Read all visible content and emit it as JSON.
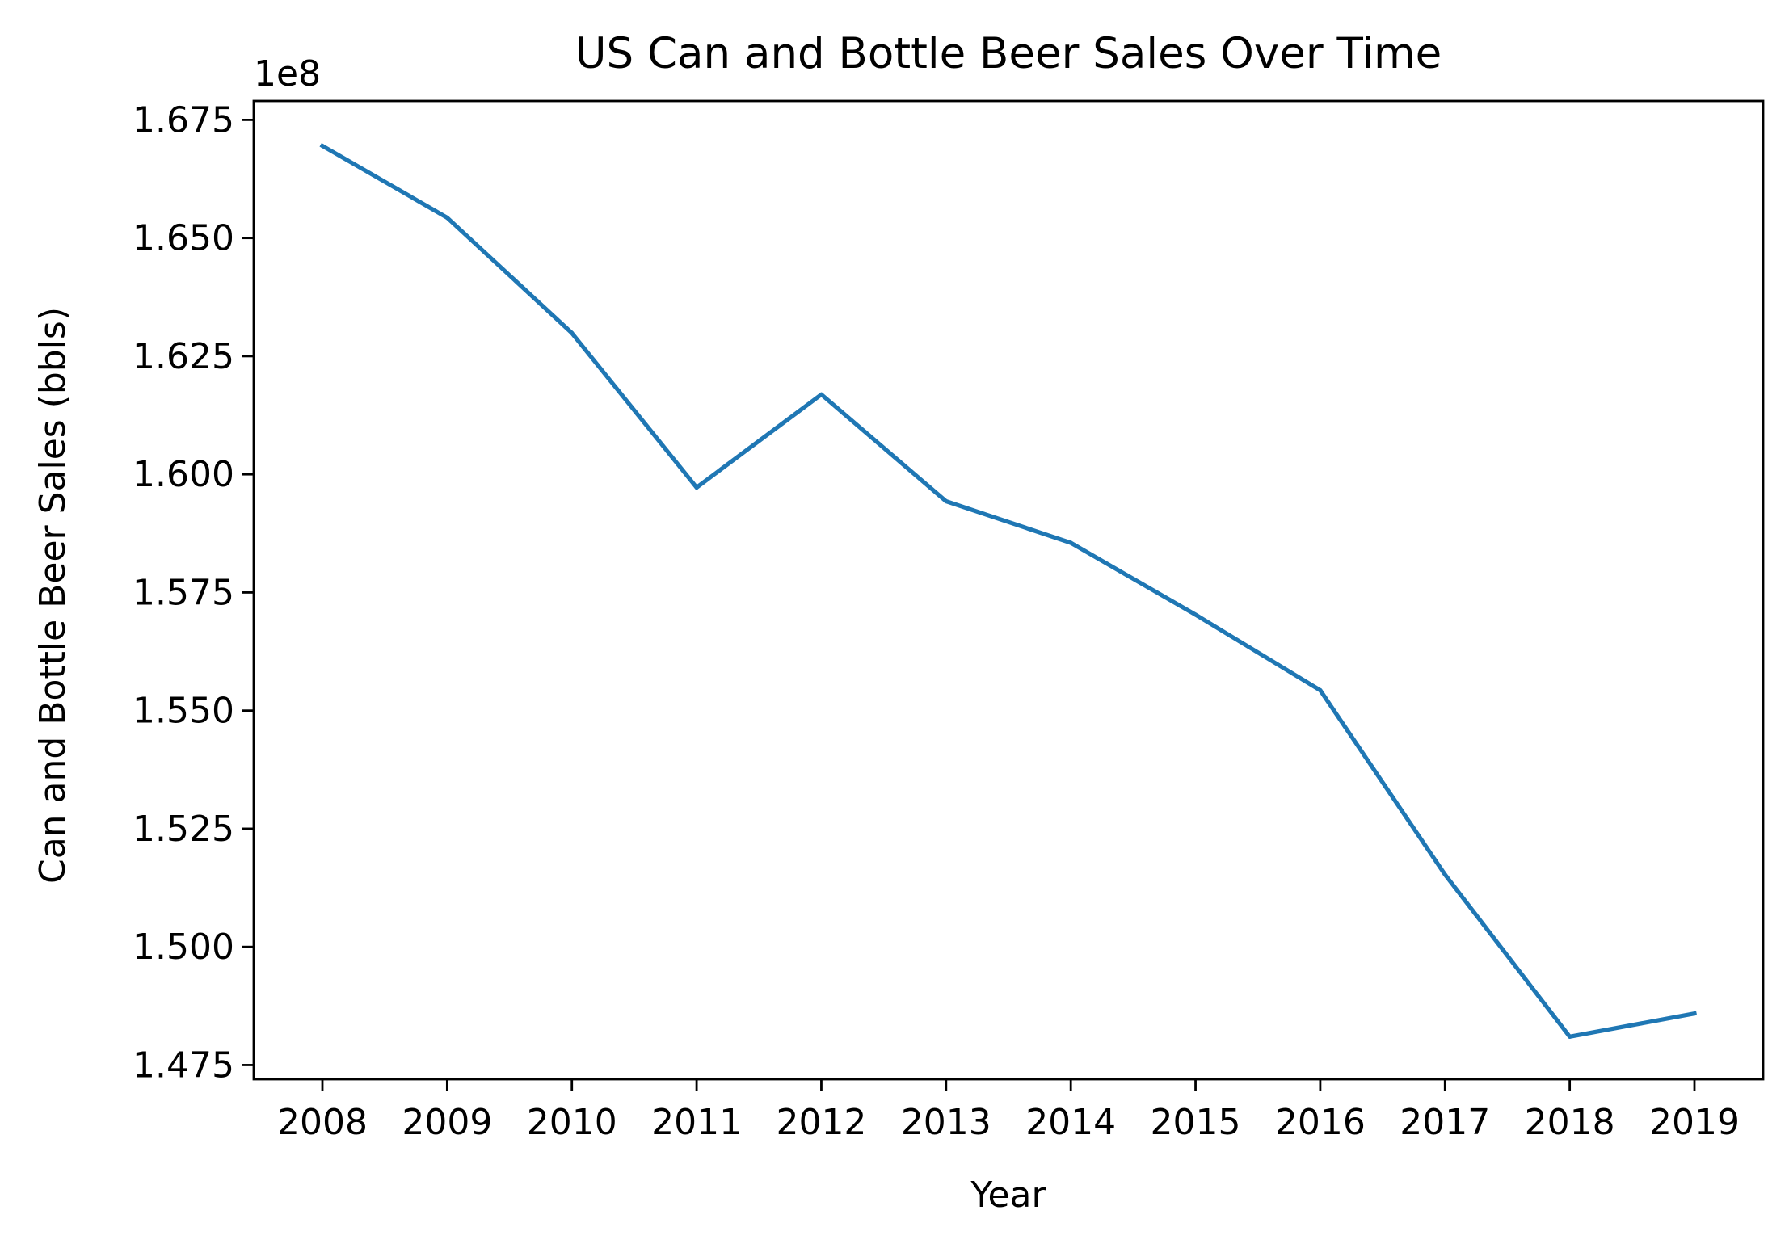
{
  "chart_data": {
    "type": "line",
    "title": "US Can and Bottle Beer Sales Over Time",
    "xlabel": "Year",
    "ylabel": "Can and Bottle Beer Sales (bbls)",
    "y_offset_label": "1e8",
    "x": [
      "2008",
      "2009",
      "2010",
      "2011",
      "2012",
      "2013",
      "2014",
      "2015",
      "2016",
      "2017",
      "2018",
      "2019"
    ],
    "series": [
      {
        "color": "#1f77b4",
        "values": [
          166950000,
          165430000,
          162990000,
          159720000,
          161690000,
          159430000,
          158550000,
          157030000,
          155430000,
          151530000,
          148100000,
          148590000
        ]
      }
    ],
    "ylim": [
      147200000,
      167900000
    ],
    "y_ticks": [
      147500000,
      150000000,
      152500000,
      155000000,
      157500000,
      160000000,
      162500000,
      165000000,
      167500000
    ],
    "y_tick_labels": [
      "1.475",
      "1.500",
      "1.525",
      "1.550",
      "1.575",
      "1.600",
      "1.625",
      "1.650",
      "1.675"
    ],
    "grid": false,
    "legend": "none"
  }
}
